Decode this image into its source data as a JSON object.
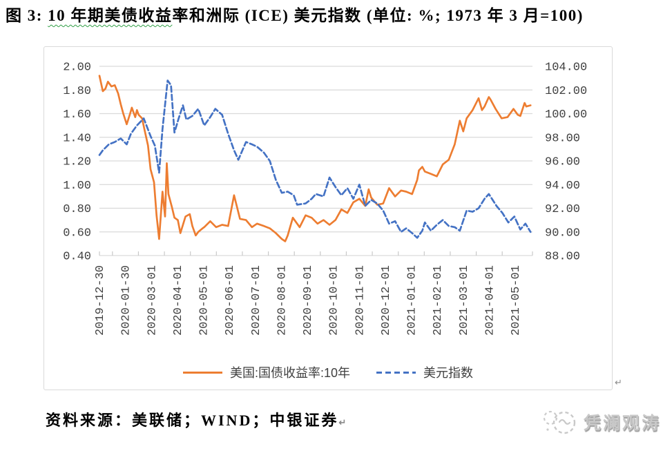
{
  "title": {
    "prefix": "图 3: ",
    "underlined": "10 年期美债收益",
    "suffix": "率和洲际 (ICE) 美元指数 (单位: %; 1973 年 3 月=100)"
  },
  "footer": {
    "source_label": "资料来源：美联储；WIND；中银证券"
  },
  "marks": {
    "paragraph": "↵"
  },
  "watermark": {
    "text": "凭澜观涛"
  },
  "chart_data": {
    "type": "line",
    "title": "10 年期美债收益率和洲际 (ICE) 美元指数",
    "grid": "horizontal",
    "left_axis": {
      "label": "%",
      "range": [
        0.4,
        2.0
      ],
      "ticks": [
        "2.00",
        "1.80",
        "1.60",
        "1.40",
        "1.20",
        "1.00",
        "0.80",
        "0.60",
        "0.40"
      ]
    },
    "right_axis": {
      "label": "1973年3月=100",
      "range": [
        88,
        104
      ],
      "ticks": [
        "104.00",
        "102.00",
        "100.00",
        "98.00",
        "96.00",
        "94.00",
        "92.00",
        "90.00",
        "88.00"
      ]
    },
    "x_axis": {
      "tick_labels": [
        "2019-12-30",
        "2020-01-30",
        "2020-03-01",
        "2020-04-01",
        "2020-05-01",
        "2020-06-01",
        "2020-07-01",
        "2020-08-01",
        "2020-09-01",
        "2020-10-01",
        "2020-11-01",
        "2020-12-01",
        "2021-01-01",
        "2021-02-01",
        "2021-03-01",
        "2021-04-01",
        "2021-05-01"
      ]
    },
    "legend": {
      "position": "bottom",
      "entries": [
        "美国:国债收益率:10年",
        "美元指数"
      ]
    },
    "series": [
      {
        "name": "美国:国债收益率:10年",
        "axis": "left",
        "color": "#ED7D31",
        "line_style": "solid",
        "points": [
          [
            "2019-12-30",
            1.92
          ],
          [
            "2020-01-03",
            1.79
          ],
          [
            "2020-01-06",
            1.81
          ],
          [
            "2020-01-09",
            1.87
          ],
          [
            "2020-01-13",
            1.83
          ],
          [
            "2020-01-17",
            1.84
          ],
          [
            "2020-01-21",
            1.77
          ],
          [
            "2020-01-24",
            1.68
          ],
          [
            "2020-01-27",
            1.6
          ],
          [
            "2020-01-31",
            1.51
          ],
          [
            "2020-02-04",
            1.6
          ],
          [
            "2020-02-06",
            1.65
          ],
          [
            "2020-02-10",
            1.57
          ],
          [
            "2020-02-12",
            1.63
          ],
          [
            "2020-02-14",
            1.59
          ],
          [
            "2020-02-18",
            1.56
          ],
          [
            "2020-02-21",
            1.46
          ],
          [
            "2020-02-25",
            1.33
          ],
          [
            "2020-02-28",
            1.13
          ],
          [
            "2020-03-03",
            1.02
          ],
          [
            "2020-03-06",
            0.74
          ],
          [
            "2020-03-09",
            0.54
          ],
          [
            "2020-03-13",
            0.94
          ],
          [
            "2020-03-16",
            0.73
          ],
          [
            "2020-03-18",
            1.18
          ],
          [
            "2020-03-20",
            0.92
          ],
          [
            "2020-03-24",
            0.81
          ],
          [
            "2020-03-27",
            0.72
          ],
          [
            "2020-03-31",
            0.7
          ],
          [
            "2020-04-03",
            0.59
          ],
          [
            "2020-04-09",
            0.73
          ],
          [
            "2020-04-14",
            0.75
          ],
          [
            "2020-04-17",
            0.65
          ],
          [
            "2020-04-21",
            0.57
          ],
          [
            "2020-04-24",
            0.6
          ],
          [
            "2020-04-29",
            0.63
          ],
          [
            "2020-05-01",
            0.64
          ],
          [
            "2020-05-08",
            0.69
          ],
          [
            "2020-05-15",
            0.64
          ],
          [
            "2020-05-22",
            0.66
          ],
          [
            "2020-05-29",
            0.65
          ],
          [
            "2020-06-05",
            0.91
          ],
          [
            "2020-06-12",
            0.71
          ],
          [
            "2020-06-19",
            0.7
          ],
          [
            "2020-06-26",
            0.64
          ],
          [
            "2020-07-02",
            0.67
          ],
          [
            "2020-07-10",
            0.65
          ],
          [
            "2020-07-17",
            0.63
          ],
          [
            "2020-07-24",
            0.59
          ],
          [
            "2020-07-31",
            0.54
          ],
          [
            "2020-08-04",
            0.52
          ],
          [
            "2020-08-07",
            0.57
          ],
          [
            "2020-08-13",
            0.72
          ],
          [
            "2020-08-21",
            0.64
          ],
          [
            "2020-08-28",
            0.74
          ],
          [
            "2020-09-04",
            0.72
          ],
          [
            "2020-09-11",
            0.67
          ],
          [
            "2020-09-18",
            0.7
          ],
          [
            "2020-09-25",
            0.66
          ],
          [
            "2020-10-02",
            0.7
          ],
          [
            "2020-10-09",
            0.79
          ],
          [
            "2020-10-16",
            0.76
          ],
          [
            "2020-10-23",
            0.85
          ],
          [
            "2020-10-30",
            0.88
          ],
          [
            "2020-11-06",
            0.82
          ],
          [
            "2020-11-10",
            0.96
          ],
          [
            "2020-11-13",
            0.89
          ],
          [
            "2020-11-20",
            0.83
          ],
          [
            "2020-11-27",
            0.84
          ],
          [
            "2020-12-04",
            0.97
          ],
          [
            "2020-12-11",
            0.9
          ],
          [
            "2020-12-18",
            0.95
          ],
          [
            "2020-12-24",
            0.94
          ],
          [
            "2020-12-31",
            0.92
          ],
          [
            "2021-01-06",
            1.04
          ],
          [
            "2021-01-08",
            1.12
          ],
          [
            "2021-01-12",
            1.15
          ],
          [
            "2021-01-15",
            1.11
          ],
          [
            "2021-01-22",
            1.09
          ],
          [
            "2021-01-29",
            1.07
          ],
          [
            "2021-02-05",
            1.17
          ],
          [
            "2021-02-12",
            1.21
          ],
          [
            "2021-02-19",
            1.34
          ],
          [
            "2021-02-25",
            1.54
          ],
          [
            "2021-03-01",
            1.45
          ],
          [
            "2021-03-05",
            1.56
          ],
          [
            "2021-03-12",
            1.63
          ],
          [
            "2021-03-19",
            1.73
          ],
          [
            "2021-03-23",
            1.63
          ],
          [
            "2021-03-26",
            1.66
          ],
          [
            "2021-03-31",
            1.74
          ],
          [
            "2021-04-02",
            1.72
          ],
          [
            "2021-04-08",
            1.64
          ],
          [
            "2021-04-15",
            1.56
          ],
          [
            "2021-04-22",
            1.57
          ],
          [
            "2021-04-29",
            1.64
          ],
          [
            "2021-05-04",
            1.59
          ],
          [
            "2021-05-07",
            1.58
          ],
          [
            "2021-05-12",
            1.69
          ],
          [
            "2021-05-14",
            1.66
          ],
          [
            "2021-05-19",
            1.67
          ]
        ]
      },
      {
        "name": "美元指数",
        "axis": "right",
        "color": "#4472C4",
        "line_style": "dashed",
        "points": [
          [
            "2019-12-30",
            96.5
          ],
          [
            "2020-01-03",
            96.9
          ],
          [
            "2020-01-10",
            97.4
          ],
          [
            "2020-01-17",
            97.6
          ],
          [
            "2020-01-24",
            97.9
          ],
          [
            "2020-01-31",
            97.4
          ],
          [
            "2020-02-05",
            98.3
          ],
          [
            "2020-02-12",
            99.0
          ],
          [
            "2020-02-20",
            99.6
          ],
          [
            "2020-02-28",
            98.1
          ],
          [
            "2020-03-04",
            97.3
          ],
          [
            "2020-03-09",
            95.0
          ],
          [
            "2020-03-13",
            98.7
          ],
          [
            "2020-03-19",
            102.8
          ],
          [
            "2020-03-23",
            102.4
          ],
          [
            "2020-03-27",
            98.4
          ],
          [
            "2020-04-01",
            99.6
          ],
          [
            "2020-04-06",
            100.7
          ],
          [
            "2020-04-10",
            99.5
          ],
          [
            "2020-04-17",
            99.8
          ],
          [
            "2020-04-24",
            100.4
          ],
          [
            "2020-05-01",
            99.0
          ],
          [
            "2020-05-08",
            99.7
          ],
          [
            "2020-05-14",
            100.4
          ],
          [
            "2020-05-22",
            99.9
          ],
          [
            "2020-05-29",
            98.3
          ],
          [
            "2020-06-05",
            96.9
          ],
          [
            "2020-06-10",
            96.1
          ],
          [
            "2020-06-19",
            97.6
          ],
          [
            "2020-06-26",
            97.4
          ],
          [
            "2020-07-02",
            97.2
          ],
          [
            "2020-07-10",
            96.7
          ],
          [
            "2020-07-17",
            96.0
          ],
          [
            "2020-07-24",
            94.4
          ],
          [
            "2020-07-31",
            93.3
          ],
          [
            "2020-08-07",
            93.4
          ],
          [
            "2020-08-14",
            93.1
          ],
          [
            "2020-08-18",
            92.3
          ],
          [
            "2020-08-28",
            92.4
          ],
          [
            "2020-09-04",
            92.8
          ],
          [
            "2020-09-09",
            93.2
          ],
          [
            "2020-09-18",
            93.0
          ],
          [
            "2020-09-25",
            94.6
          ],
          [
            "2020-10-02",
            93.8
          ],
          [
            "2020-10-09",
            93.1
          ],
          [
            "2020-10-16",
            93.7
          ],
          [
            "2020-10-23",
            92.8
          ],
          [
            "2020-10-30",
            94.0
          ],
          [
            "2020-11-06",
            92.2
          ],
          [
            "2020-11-13",
            92.7
          ],
          [
            "2020-11-20",
            92.4
          ],
          [
            "2020-11-27",
            91.8
          ],
          [
            "2020-12-04",
            90.7
          ],
          [
            "2020-12-11",
            90.9
          ],
          [
            "2020-12-18",
            90.0
          ],
          [
            "2020-12-24",
            90.3
          ],
          [
            "2020-12-31",
            89.9
          ],
          [
            "2021-01-06",
            89.5
          ],
          [
            "2021-01-12",
            90.1
          ],
          [
            "2021-01-15",
            90.8
          ],
          [
            "2021-01-22",
            90.1
          ],
          [
            "2021-01-29",
            90.6
          ],
          [
            "2021-02-05",
            91.0
          ],
          [
            "2021-02-12",
            90.5
          ],
          [
            "2021-02-19",
            90.4
          ],
          [
            "2021-02-25",
            90.1
          ],
          [
            "2021-03-05",
            91.8
          ],
          [
            "2021-03-12",
            91.7
          ],
          [
            "2021-03-19",
            92.0
          ],
          [
            "2021-03-26",
            92.8
          ],
          [
            "2021-03-31",
            93.2
          ],
          [
            "2021-04-09",
            92.2
          ],
          [
            "2021-04-16",
            91.6
          ],
          [
            "2021-04-23",
            90.8
          ],
          [
            "2021-04-30",
            91.3
          ],
          [
            "2021-05-07",
            90.2
          ],
          [
            "2021-05-13",
            90.7
          ],
          [
            "2021-05-19",
            90.0
          ]
        ]
      }
    ]
  }
}
